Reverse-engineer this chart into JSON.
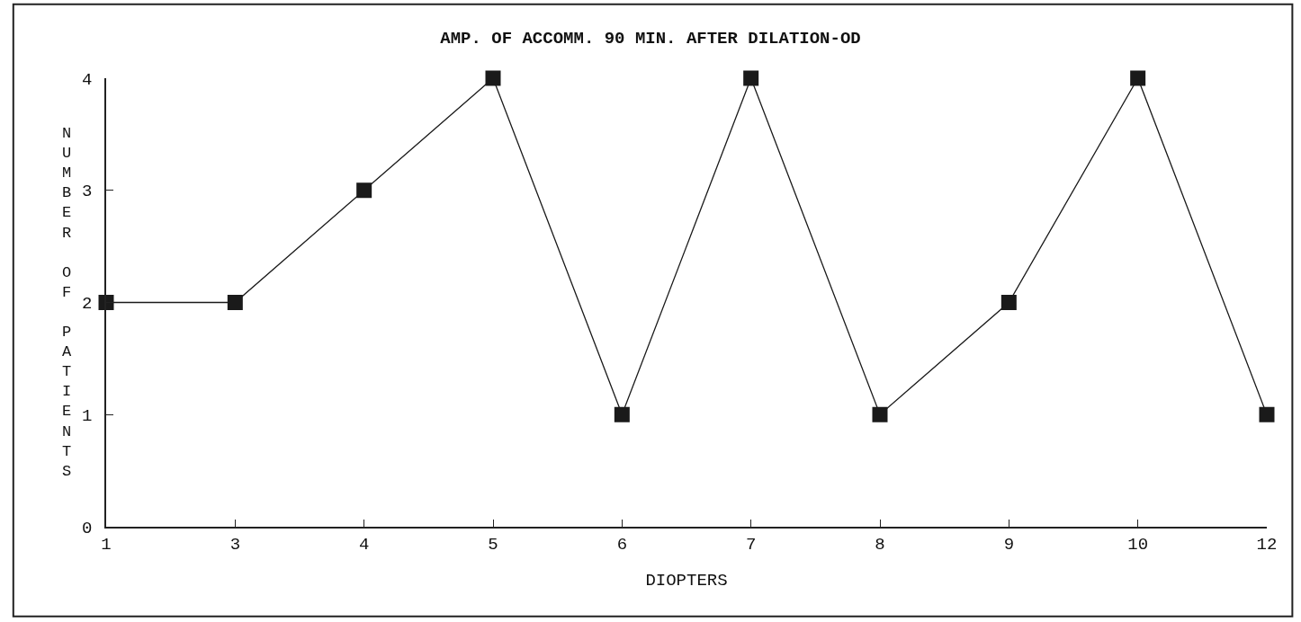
{
  "chart_data": {
    "type": "line",
    "title": "AMP. OF ACCOMM. 90 MIN. AFTER DILATION-OD",
    "xlabel": "DIOPTERS",
    "ylabel": "NUMBER OF PATIENTS",
    "categories": [
      "1",
      "3",
      "4",
      "5",
      "6",
      "7",
      "8",
      "9",
      "10",
      "12"
    ],
    "series": [
      {
        "color": "#1a1a1a",
        "values": [
          2,
          2,
          3,
          4,
          1,
          4,
          1,
          2,
          4,
          1
        ]
      }
    ],
    "ylim": [
      0,
      4
    ],
    "yticks": [
      0,
      1,
      2,
      3,
      4
    ],
    "legend": false,
    "marker": "square",
    "line_style": "solid"
  }
}
